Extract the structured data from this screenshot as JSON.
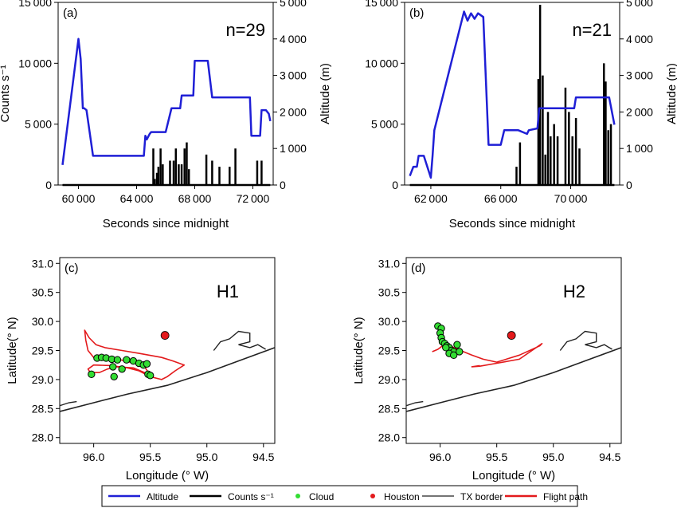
{
  "legend": {
    "items": [
      {
        "label": "Altitude",
        "kind": "line",
        "color": "#1f1fd6"
      },
      {
        "label": "Counts s⁻¹",
        "kind": "line",
        "color": "#000000"
      },
      {
        "label": "Cloud",
        "kind": "dot",
        "color": "#33dd33"
      },
      {
        "label": "Houston",
        "kind": "dot",
        "color": "#e31a1c"
      },
      {
        "label": "TX border",
        "kind": "thinline",
        "color": "#222222"
      },
      {
        "label": "Flight path",
        "kind": "line",
        "color": "#e31a1c"
      }
    ]
  },
  "chart_data": [
    {
      "type": "line",
      "panel_label": "(a)",
      "annotation": "n=29",
      "xlabel": "Seconds since midnight",
      "ylabel": "Counts s⁻¹",
      "y2label": "Altitude (m)",
      "xlim": [
        58600,
        73400
      ],
      "xticks": [
        60000,
        64000,
        68000,
        72000
      ],
      "ylim": [
        0,
        15000
      ],
      "yticks": [
        0,
        5000,
        10000,
        15000
      ],
      "y2lim": [
        0,
        5000
      ],
      "y2ticks": [
        0,
        1000,
        2000,
        3000,
        4000,
        5000
      ],
      "series": [
        {
          "name": "Altitude",
          "axis": "right",
          "color": "#1f1fd6",
          "x": [
            58900,
            60000,
            60150,
            60300,
            60400,
            60550,
            61000,
            64000,
            64500,
            64600,
            64700,
            64900,
            65000,
            65800,
            66000,
            66400,
            66600,
            67000,
            67100,
            67900,
            68000,
            68900,
            69200,
            70500,
            70800,
            71800,
            71900,
            72500,
            72600,
            72900,
            73100,
            73200
          ],
          "y": [
            550,
            4000,
            3450,
            2100,
            2100,
            2050,
            800,
            800,
            800,
            1350,
            1250,
            1400,
            1450,
            1450,
            1450,
            2100,
            2100,
            2100,
            2450,
            2450,
            3400,
            3400,
            2400,
            2400,
            2400,
            2400,
            1350,
            1350,
            2050,
            2050,
            1950,
            1750
          ]
        },
        {
          "name": "Counts",
          "axis": "left",
          "color": "#000000",
          "baseline_x": [
            58900,
            73200
          ],
          "spikes_x": [
            65150,
            65250,
            65400,
            65500,
            65650,
            65800,
            66300,
            66550,
            66700,
            66900,
            67100,
            67300,
            67450,
            67600,
            68800,
            69200,
            69700,
            70400,
            70800,
            72300,
            72600
          ],
          "spikes_y": [
            3000,
            500,
            1000,
            1500,
            3000,
            1700,
            2000,
            2000,
            3000,
            1700,
            1700,
            3000,
            3500,
            1300,
            2500,
            2000,
            1500,
            1500,
            3000,
            2000,
            2000
          ]
        }
      ]
    },
    {
      "type": "line",
      "panel_label": "(b)",
      "annotation": "n=21",
      "xlabel": "Seconds since midnight",
      "ylabel": "",
      "y2label": "Altitude (m)",
      "xlim": [
        60500,
        72800
      ],
      "xticks": [
        62000,
        66000,
        70000
      ],
      "ylim": [
        0,
        15000
      ],
      "yticks": [
        0,
        5000,
        10000,
        15000
      ],
      "y2lim": [
        0,
        5000
      ],
      "y2ticks": [
        0,
        1000,
        2000,
        3000,
        4000,
        5000
      ],
      "series": [
        {
          "name": "Altitude",
          "axis": "right",
          "color": "#1f1fd6",
          "x": [
            60800,
            61000,
            61200,
            61300,
            61500,
            61600,
            62000,
            62100,
            62200,
            63900,
            64100,
            64300,
            64500,
            64700,
            65000,
            65300,
            66000,
            66200,
            67000,
            67500,
            67600,
            68100,
            68200,
            69200,
            69800,
            70200,
            70300,
            72100,
            72200,
            72500
          ],
          "y": [
            250,
            500,
            500,
            800,
            800,
            800,
            200,
            800,
            1500,
            4750,
            4500,
            4700,
            4550,
            4700,
            4600,
            1100,
            1100,
            1500,
            1500,
            1400,
            1500,
            1550,
            2100,
            2100,
            2100,
            2100,
            2400,
            2400,
            2400,
            1650
          ]
        },
        {
          "name": "Counts",
          "axis": "left",
          "color": "#000000",
          "baseline_x": [
            60800,
            72500
          ],
          "spikes_x": [
            66900,
            67100,
            68150,
            68250,
            68400,
            68550,
            68700,
            68850,
            69050,
            69250,
            69700,
            69900,
            70100,
            70300,
            70500,
            71900,
            72000,
            72150,
            72300
          ],
          "spikes_y": [
            1500,
            3500,
            8700,
            14800,
            9000,
            2500,
            6000,
            4000,
            5000,
            4000,
            8000,
            6000,
            4000,
            5500,
            3000,
            10000,
            8500,
            4500,
            5000
          ]
        }
      ]
    },
    {
      "type": "scatter",
      "panel_label": "(c)",
      "annotation": "H1",
      "xlabel": "Longitude (° W)",
      "ylabel": "Latitude(° N)",
      "xlim": [
        96.3,
        94.4
      ],
      "xticks": [
        "96.0",
        "95.5",
        "95.0",
        "94.5"
      ],
      "ylim": [
        27.9,
        31.1
      ],
      "yticks": [
        "28.0",
        "28.5",
        "29.0",
        "29.5",
        "30.0",
        "30.5",
        "31.0"
      ],
      "houston": [
        95.37,
        29.76
      ],
      "tx_border_coast": [
        [
          96.3,
          28.45
        ],
        [
          96.0,
          28.6
        ],
        [
          95.7,
          28.75
        ],
        [
          95.35,
          28.9
        ],
        [
          95.0,
          29.12
        ],
        [
          94.75,
          29.3
        ],
        [
          94.4,
          29.55
        ]
      ],
      "tx_border_bay": [
        [
          94.94,
          29.5
        ],
        [
          94.88,
          29.65
        ],
        [
          94.8,
          29.7
        ],
        [
          94.72,
          29.83
        ],
        [
          94.62,
          29.8
        ],
        [
          94.62,
          29.65
        ],
        [
          94.72,
          29.6
        ],
        [
          94.62,
          29.55
        ],
        [
          94.55,
          29.6
        ],
        [
          94.48,
          29.52
        ]
      ],
      "tx_border_island": [
        [
          96.3,
          28.55
        ],
        [
          96.22,
          28.6
        ],
        [
          96.15,
          28.62
        ]
      ],
      "flight_path": [
        [
          95.5,
          29.07
        ],
        [
          95.56,
          29.25
        ],
        [
          95.62,
          29.3
        ],
        [
          95.68,
          29.3
        ],
        [
          95.74,
          29.33
        ],
        [
          95.82,
          29.36
        ],
        [
          95.9,
          29.38
        ],
        [
          96.0,
          29.38
        ],
        [
          96.05,
          29.5
        ],
        [
          96.07,
          29.68
        ],
        [
          96.08,
          29.85
        ],
        [
          96.04,
          29.72
        ],
        [
          95.98,
          29.6
        ],
        [
          95.9,
          29.55
        ],
        [
          95.75,
          29.5
        ],
        [
          95.6,
          29.45
        ],
        [
          95.4,
          29.38
        ],
        [
          95.3,
          29.32
        ],
        [
          95.2,
          29.25
        ],
        [
          95.28,
          29.15
        ],
        [
          95.35,
          29.05
        ],
        [
          95.4,
          29.0
        ],
        [
          95.5,
          29.05
        ],
        [
          95.6,
          29.15
        ],
        [
          95.7,
          29.2
        ],
        [
          95.85,
          29.24
        ],
        [
          96.0,
          29.25
        ],
        [
          96.05,
          29.18
        ],
        [
          96.03,
          29.12
        ],
        [
          95.95,
          29.12
        ],
        [
          95.88,
          29.18
        ],
        [
          95.8,
          29.22
        ],
        [
          95.65,
          29.2
        ],
        [
          95.55,
          29.12
        ],
        [
          95.5,
          29.06
        ]
      ],
      "clouds": [
        [
          96.02,
          29.09
        ],
        [
          95.97,
          29.37
        ],
        [
          95.93,
          29.38
        ],
        [
          95.89,
          29.37
        ],
        [
          95.84,
          29.35
        ],
        [
          95.79,
          29.34
        ],
        [
          95.71,
          29.34
        ],
        [
          95.65,
          29.32
        ],
        [
          95.6,
          29.28
        ],
        [
          95.56,
          29.25
        ],
        [
          95.53,
          29.27
        ],
        [
          95.83,
          29.22
        ],
        [
          95.75,
          29.18
        ],
        [
          95.82,
          29.05
        ],
        [
          95.52,
          29.09
        ],
        [
          95.5,
          29.07
        ]
      ]
    },
    {
      "type": "scatter",
      "panel_label": "(d)",
      "annotation": "H2",
      "xlabel": "Longitude (° W)",
      "ylabel": "Latitude(° N)",
      "xlim": [
        96.3,
        94.4
      ],
      "xticks": [
        "96.0",
        "95.5",
        "95.0",
        "94.5"
      ],
      "ylim": [
        27.9,
        31.1
      ],
      "yticks": [
        "28.0",
        "28.5",
        "29.0",
        "29.5",
        "30.0",
        "30.5",
        "31.0"
      ],
      "houston": [
        95.37,
        29.76
      ],
      "tx_border_coast": [
        [
          96.3,
          28.45
        ],
        [
          96.0,
          28.6
        ],
        [
          95.7,
          28.75
        ],
        [
          95.35,
          28.9
        ],
        [
          95.0,
          29.12
        ],
        [
          94.75,
          29.3
        ],
        [
          94.4,
          29.55
        ]
      ],
      "tx_border_bay": [
        [
          94.94,
          29.5
        ],
        [
          94.88,
          29.65
        ],
        [
          94.8,
          29.7
        ],
        [
          94.72,
          29.83
        ],
        [
          94.62,
          29.8
        ],
        [
          94.62,
          29.65
        ],
        [
          94.72,
          29.6
        ],
        [
          94.62,
          29.55
        ],
        [
          94.55,
          29.6
        ],
        [
          94.48,
          29.52
        ]
      ],
      "tx_border_island": [
        [
          96.3,
          28.55
        ],
        [
          96.22,
          28.6
        ],
        [
          96.15,
          28.62
        ]
      ],
      "flight_path": [
        [
          96.07,
          29.48
        ],
        [
          96.02,
          29.52
        ],
        [
          95.98,
          29.58
        ],
        [
          95.95,
          29.62
        ],
        [
          95.92,
          29.6
        ],
        [
          95.88,
          29.55
        ],
        [
          95.82,
          29.5
        ],
        [
          95.72,
          29.42
        ],
        [
          95.62,
          29.35
        ],
        [
          95.5,
          29.3
        ],
        [
          95.3,
          29.42
        ],
        [
          95.12,
          29.58
        ],
        [
          95.1,
          29.62
        ],
        [
          95.3,
          29.35
        ],
        [
          95.5,
          29.28
        ],
        [
          95.65,
          29.23
        ],
        [
          95.72,
          29.22
        ],
        [
          95.65,
          29.24
        ]
      ],
      "clouds": [
        [
          96.02,
          29.92
        ],
        [
          95.99,
          29.88
        ],
        [
          96.0,
          29.8
        ],
        [
          95.99,
          29.72
        ],
        [
          95.98,
          29.65
        ],
        [
          95.96,
          29.62
        ],
        [
          95.94,
          29.58
        ],
        [
          95.92,
          29.55
        ],
        [
          95.9,
          29.5
        ],
        [
          95.88,
          29.48
        ],
        [
          95.95,
          29.55
        ],
        [
          95.92,
          29.45
        ],
        [
          95.88,
          29.42
        ],
        [
          95.85,
          29.6
        ],
        [
          95.83,
          29.48
        ]
      ]
    }
  ]
}
